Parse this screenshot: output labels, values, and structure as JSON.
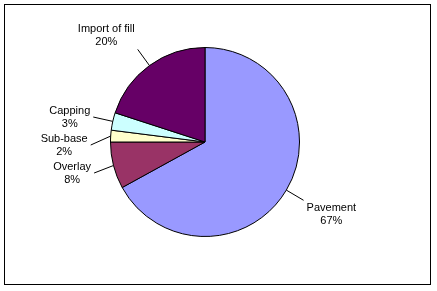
{
  "chart_data": {
    "type": "pie",
    "categories": [
      "Pavement",
      "Overlay",
      "Sub-base",
      "Capping",
      "Import of fill"
    ],
    "values": [
      67,
      8,
      2,
      3,
      20
    ],
    "value_labels": [
      "67%",
      "8%",
      "2%",
      "3%",
      "20%"
    ],
    "colors": [
      "#9999ff",
      "#993366",
      "#ffffcc",
      "#ccffff",
      "#660066"
    ],
    "data_labels": true
  }
}
